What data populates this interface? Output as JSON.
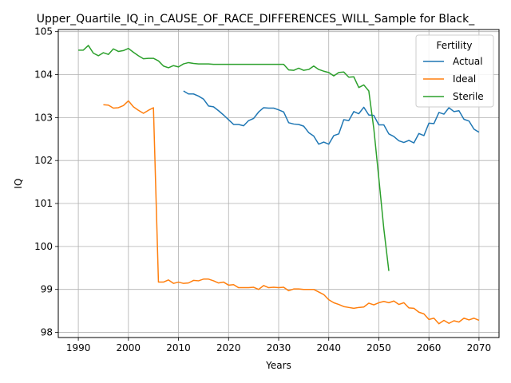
{
  "chart_data": {
    "type": "line",
    "title": "Upper_Quartile_IQ_in_CAUSE_OF_RACE_DIFFERENCES_WILL_Sample for Black_",
    "xlabel": "Years",
    "ylabel": "IQ",
    "xlim": [
      1986.0,
      2074.0
    ],
    "ylim": [
      97.88,
      105.05
    ],
    "xticks": [
      1990,
      2000,
      2010,
      2020,
      2030,
      2040,
      2050,
      2060,
      2070
    ],
    "yticks": [
      98,
      99,
      100,
      101,
      102,
      103,
      104,
      105
    ],
    "grid": true,
    "legend": {
      "title": "Fertility",
      "placement": "top-right"
    },
    "series": [
      {
        "name": "Actual",
        "color": "#1f77b4",
        "x": [
          2011,
          2012,
          2013,
          2014,
          2015,
          2016,
          2017,
          2018,
          2019,
          2020,
          2021,
          2022,
          2023,
          2024,
          2025,
          2026,
          2027,
          2028,
          2029,
          2030,
          2031,
          2032,
          2033,
          2034,
          2035,
          2036,
          2037,
          2038,
          2039,
          2040,
          2041,
          2042,
          2043,
          2044,
          2045,
          2046,
          2047,
          2048,
          2049,
          2050,
          2051,
          2052,
          2053,
          2054,
          2055,
          2056,
          2057,
          2058,
          2059,
          2060,
          2061,
          2062,
          2063,
          2064,
          2065,
          2066,
          2067,
          2068,
          2069,
          2070
        ],
        "y": [
          103.62,
          103.55,
          103.55,
          103.5,
          103.43,
          103.27,
          103.25,
          103.16,
          103.06,
          102.95,
          102.84,
          102.84,
          102.81,
          102.93,
          102.98,
          103.13,
          103.23,
          103.22,
          103.22,
          103.18,
          103.13,
          102.88,
          102.85,
          102.84,
          102.8,
          102.65,
          102.57,
          102.38,
          102.43,
          102.38,
          102.58,
          102.62,
          102.95,
          102.93,
          103.14,
          103.09,
          103.24,
          103.06,
          103.05,
          102.83,
          102.83,
          102.62,
          102.56,
          102.46,
          102.42,
          102.47,
          102.41,
          102.63,
          102.58,
          102.87,
          102.86,
          103.12,
          103.08,
          103.23,
          103.14,
          103.16,
          102.96,
          102.92,
          102.73,
          102.66
        ]
      },
      {
        "name": "Ideal",
        "color": "#ff7f0e",
        "x": [
          1995,
          1996,
          1997,
          1998,
          1999,
          2000,
          2001,
          2002,
          2003,
          2004,
          2005,
          2006,
          2007,
          2008,
          2009,
          2010,
          2011,
          2012,
          2013,
          2014,
          2015,
          2016,
          2017,
          2018,
          2019,
          2020,
          2021,
          2022,
          2023,
          2024,
          2025,
          2026,
          2027,
          2028,
          2029,
          2030,
          2031,
          2032,
          2033,
          2034,
          2035,
          2036,
          2037,
          2038,
          2039,
          2040,
          2041,
          2042,
          2043,
          2044,
          2045,
          2046,
          2047,
          2048,
          2049,
          2050,
          2051,
          2052,
          2053,
          2054,
          2055,
          2056,
          2057,
          2058,
          2059,
          2060,
          2061,
          2062,
          2063,
          2064,
          2065,
          2066,
          2067,
          2068,
          2069,
          2070
        ],
        "y": [
          103.3,
          103.29,
          103.22,
          103.23,
          103.28,
          103.39,
          103.25,
          103.17,
          103.1,
          103.17,
          103.23,
          99.17,
          99.17,
          99.22,
          99.14,
          99.17,
          99.14,
          99.15,
          99.21,
          99.2,
          99.24,
          99.24,
          99.2,
          99.15,
          99.17,
          99.1,
          99.11,
          99.04,
          99.04,
          99.04,
          99.05,
          99.0,
          99.09,
          99.04,
          99.05,
          99.04,
          99.05,
          98.97,
          99.01,
          99.01,
          99.0,
          99.0,
          99.0,
          98.94,
          98.88,
          98.76,
          98.69,
          98.65,
          98.6,
          98.58,
          98.56,
          98.58,
          98.59,
          98.68,
          98.64,
          98.69,
          98.72,
          98.69,
          98.73,
          98.65,
          98.69,
          98.57,
          98.56,
          98.47,
          98.43,
          98.3,
          98.33,
          98.2,
          98.28,
          98.21,
          98.27,
          98.24,
          98.33,
          98.29,
          98.33,
          98.28
        ]
      },
      {
        "name": "Sterile",
        "color": "#2ca02c",
        "x": [
          1990,
          1991,
          1992,
          1993,
          1994,
          1995,
          1996,
          1997,
          1998,
          1999,
          2000,
          2001,
          2002,
          2003,
          2004,
          2005,
          2006,
          2007,
          2008,
          2009,
          2010,
          2011,
          2012,
          2013,
          2014,
          2015,
          2016,
          2017,
          2018,
          2019,
          2020,
          2021,
          2022,
          2023,
          2024,
          2025,
          2026,
          2027,
          2028,
          2029,
          2030,
          2031,
          2032,
          2033,
          2034,
          2035,
          2036,
          2037,
          2038,
          2039,
          2040,
          2041,
          2042,
          2043,
          2044,
          2045,
          2046,
          2047,
          2048,
          2049,
          2050,
          2051,
          2052
        ],
        "y": [
          104.57,
          104.57,
          104.68,
          104.5,
          104.44,
          104.51,
          104.47,
          104.6,
          104.54,
          104.56,
          104.61,
          104.52,
          104.44,
          104.37,
          104.38,
          104.38,
          104.32,
          104.2,
          104.16,
          104.21,
          104.18,
          104.25,
          104.28,
          104.26,
          104.25,
          104.25,
          104.25,
          104.24,
          104.24,
          104.24,
          104.24,
          104.24,
          104.24,
          104.24,
          104.24,
          104.24,
          104.24,
          104.24,
          104.24,
          104.24,
          104.24,
          104.24,
          104.11,
          104.1,
          104.15,
          104.1,
          104.12,
          104.2,
          104.12,
          104.08,
          104.05,
          103.97,
          104.05,
          104.06,
          103.94,
          103.95,
          103.7,
          103.76,
          103.62,
          102.74,
          101.59,
          100.41,
          99.43
        ]
      }
    ]
  }
}
